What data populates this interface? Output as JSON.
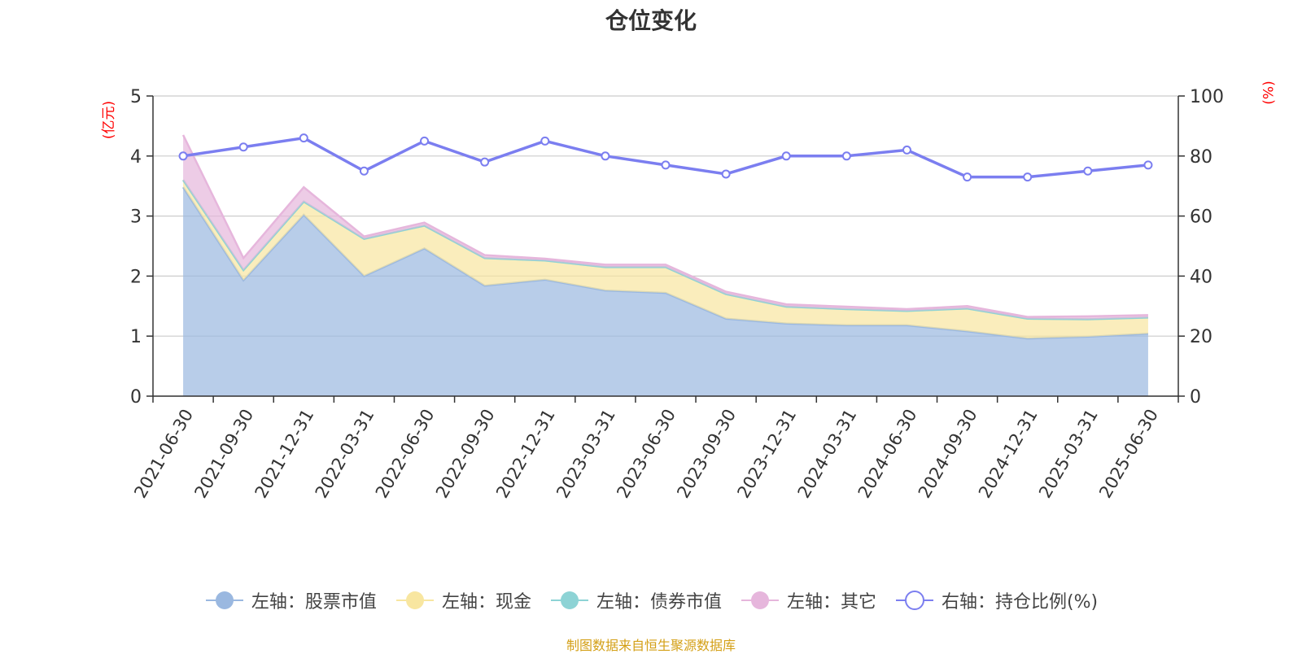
{
  "chart_data": {
    "type": "area",
    "title": "仓位变化",
    "left_unit": "(亿元)",
    "right_unit": "(%)",
    "categories": [
      "2021-06-30",
      "2021-09-30",
      "2021-12-31",
      "2022-03-31",
      "2022-06-30",
      "2022-09-30",
      "2022-12-31",
      "2023-03-31",
      "2023-06-30",
      "2023-09-30",
      "2023-12-31",
      "2024-03-31",
      "2024-06-30",
      "2024-09-30",
      "2024-12-31",
      "2025-03-31",
      "2025-06-30"
    ],
    "left_axis": {
      "min": 0,
      "max": 5,
      "ticks": [
        0,
        1,
        2,
        3,
        4,
        5
      ]
    },
    "right_axis": {
      "min": 0,
      "max": 100,
      "ticks": [
        0,
        20,
        40,
        60,
        80,
        100
      ]
    },
    "series": [
      {
        "name": "左轴：股票市值",
        "axis": "left",
        "stack": true,
        "color": "#9ab8e0",
        "values": [
          3.48,
          1.93,
          3.02,
          2.0,
          2.46,
          1.84,
          1.94,
          1.76,
          1.72,
          1.29,
          1.21,
          1.18,
          1.18,
          1.08,
          0.96,
          0.99,
          1.04
        ]
      },
      {
        "name": "左轴：现金",
        "axis": "left",
        "stack": true,
        "color": "#f8e6a0",
        "values": [
          0.12,
          0.17,
          0.22,
          0.62,
          0.38,
          0.46,
          0.32,
          0.39,
          0.43,
          0.41,
          0.28,
          0.27,
          0.24,
          0.38,
          0.33,
          0.29,
          0.27
        ]
      },
      {
        "name": "左轴：债券市值",
        "axis": "left",
        "stack": true,
        "color": "#8dd3d5",
        "values": [
          0,
          0,
          0,
          0,
          0,
          0,
          0,
          0,
          0,
          0,
          0,
          0,
          0,
          0,
          0,
          0,
          0
        ]
      },
      {
        "name": "左轴：其它",
        "axis": "left",
        "stack": true,
        "color": "#e6b6dc",
        "values": [
          0.75,
          0.2,
          0.24,
          0.04,
          0.05,
          0.05,
          0.03,
          0.04,
          0.04,
          0.04,
          0.04,
          0.04,
          0.03,
          0.04,
          0.03,
          0.05,
          0.04
        ]
      },
      {
        "name": "右轴：持仓比例(%)",
        "axis": "right",
        "stack": false,
        "color": "#7b7ef0",
        "values": [
          80,
          83,
          86,
          75,
          85,
          78,
          85,
          80,
          77,
          74,
          80,
          80,
          82,
          73,
          73,
          75,
          77
        ]
      }
    ],
    "grid": true,
    "legend": "bottom-center",
    "source": "制图数据来自恒生聚源数据库"
  }
}
